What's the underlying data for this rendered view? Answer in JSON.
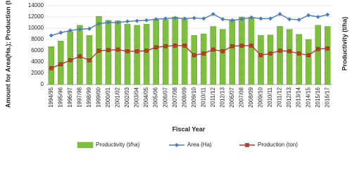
{
  "chart_data": {
    "type": "combo",
    "x_label": "Fiscal Year",
    "y_label": "Amount for Area(Ha.); Production (ton)",
    "y2_label": "Productivity (t/ha)",
    "categories": [
      "1994/95",
      "1995/96",
      "1996/97",
      "1997/98",
      "1998/99",
      "1999/00",
      "2000/01",
      "2001/02",
      "2002/03",
      "2003/04",
      "2004/05",
      "2005/06",
      "2006/07",
      "2007/08",
      "2008/09",
      "2009/10",
      "2010/11",
      "2011/12",
      "2012/13",
      "2006/07",
      "2007/08",
      "2008/09",
      "2009/10",
      "2010/11",
      "2011/12",
      "2012/13",
      "2013/14",
      "2014/15",
      "2015/16",
      "2016/17"
    ],
    "ylim": [
      0,
      14000
    ],
    "yticks": [
      0,
      2000,
      4000,
      6000,
      8000,
      10000,
      12000,
      14000
    ],
    "y2lim": [
      0,
      3.5
    ],
    "grid": true,
    "legend": "bottom",
    "series": [
      {
        "name": "Productivity (t/ha)",
        "type": "bar",
        "axis": "y2",
        "color": "#7fbf3f",
        "values": [
          1.68,
          1.93,
          2.35,
          2.63,
          2.18,
          3.03,
          2.85,
          2.83,
          2.68,
          2.63,
          2.68,
          2.88,
          2.88,
          3.0,
          2.95,
          2.18,
          2.25,
          2.58,
          2.45,
          2.88,
          3.0,
          2.98,
          2.18,
          2.2,
          2.58,
          2.45,
          2.23,
          2.0,
          2.63,
          2.58
        ]
      },
      {
        "name": "Area (Ha)",
        "type": "line",
        "marker": "diamond",
        "color": "#4a7ebb",
        "values": [
          8700,
          9200,
          9600,
          9800,
          9900,
          10800,
          11000,
          11000,
          11200,
          11300,
          11400,
          11600,
          11700,
          11800,
          11700,
          11800,
          11700,
          12500,
          11600,
          11400,
          11600,
          11900,
          11700,
          11700,
          12500,
          11600,
          11500,
          12300,
          12000,
          12400
        ]
      },
      {
        "name": "Production (ton)",
        "type": "line",
        "marker": "square",
        "color": "#c0392b",
        "values": [
          2900,
          3600,
          4300,
          5000,
          4300,
          6000,
          6100,
          6200,
          5900,
          5900,
          6000,
          6600,
          6800,
          6900,
          6900,
          5200,
          5500,
          6200,
          5900,
          6800,
          6900,
          6900,
          5200,
          5500,
          6000,
          5900,
          5500,
          5200,
          6300,
          6400
        ]
      }
    ]
  }
}
